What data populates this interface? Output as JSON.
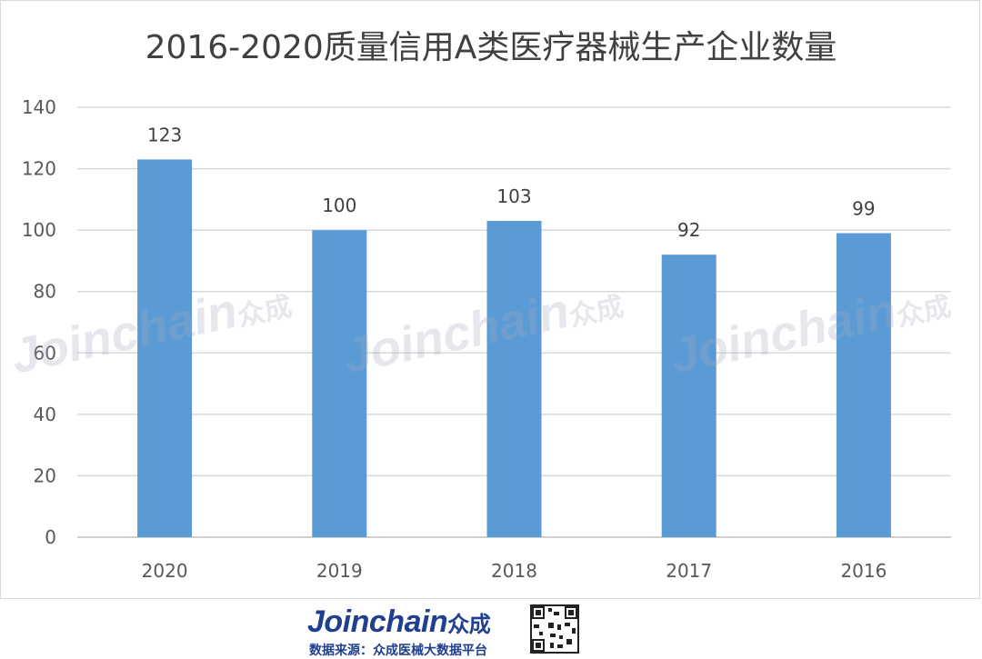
{
  "chart_data": {
    "type": "bar",
    "title": "2016-2020质量信用A类医疗器械生产企业数量",
    "categories": [
      "2020",
      "2019",
      "2018",
      "2017",
      "2016"
    ],
    "values": [
      123,
      100,
      103,
      92,
      99
    ],
    "ylim": [
      0,
      140
    ],
    "yticks": [
      0,
      20,
      40,
      60,
      80,
      100,
      120,
      140
    ],
    "grid": true,
    "bar_color": "#5b9bd5",
    "xlabel": "",
    "ylabel": ""
  },
  "watermark": {
    "brand": "Joinchain",
    "brand_cn": "众成"
  },
  "footer": {
    "logo": "Joinchain",
    "logo_cn": "众成",
    "source_text": "数据来源：众成医械大数据平台"
  }
}
